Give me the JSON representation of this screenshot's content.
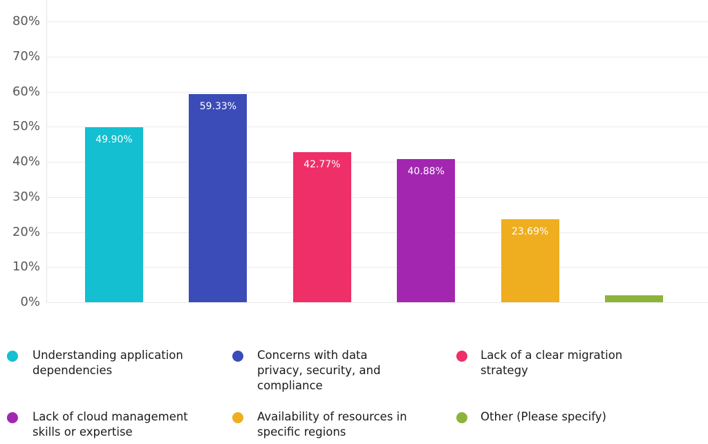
{
  "chart_data": {
    "type": "bar",
    "title": "",
    "categories": [
      "Understanding application\ndependencies",
      "Concerns with data\nprivacy, security, and\ncompliance",
      "Lack of a clear migration\nstrategy",
      "Lack of cloud management\nskills or expertise",
      "Availability of resources in\nspecific regions",
      "Other (Please specify)"
    ],
    "values": [
      49.9,
      59.33,
      42.77,
      40.88,
      23.69,
      2.0
    ],
    "value_labels": [
      "49.90%",
      "59.33%",
      "42.77%",
      "40.88%",
      "23.69%",
      ""
    ],
    "colors": [
      "#14bfd1",
      "#3b4cb8",
      "#ee2f68",
      "#a226b0",
      "#efae1f",
      "#8db43a"
    ],
    "y_ticks": [
      "0%",
      "10%",
      "20%",
      "30%",
      "40%",
      "50%",
      "60%",
      "70%",
      "80%"
    ],
    "ylim": [
      0,
      86
    ],
    "xlabel": "",
    "ylabel": "",
    "grid": "horizontal",
    "legend_position": "bottom",
    "value_label_color": "#ffffff",
    "tick_label_color": "#585858",
    "legend_text_color": "#1b1b1b",
    "gridline_color": "#ebebeb",
    "background_color": "#ffffff"
  }
}
